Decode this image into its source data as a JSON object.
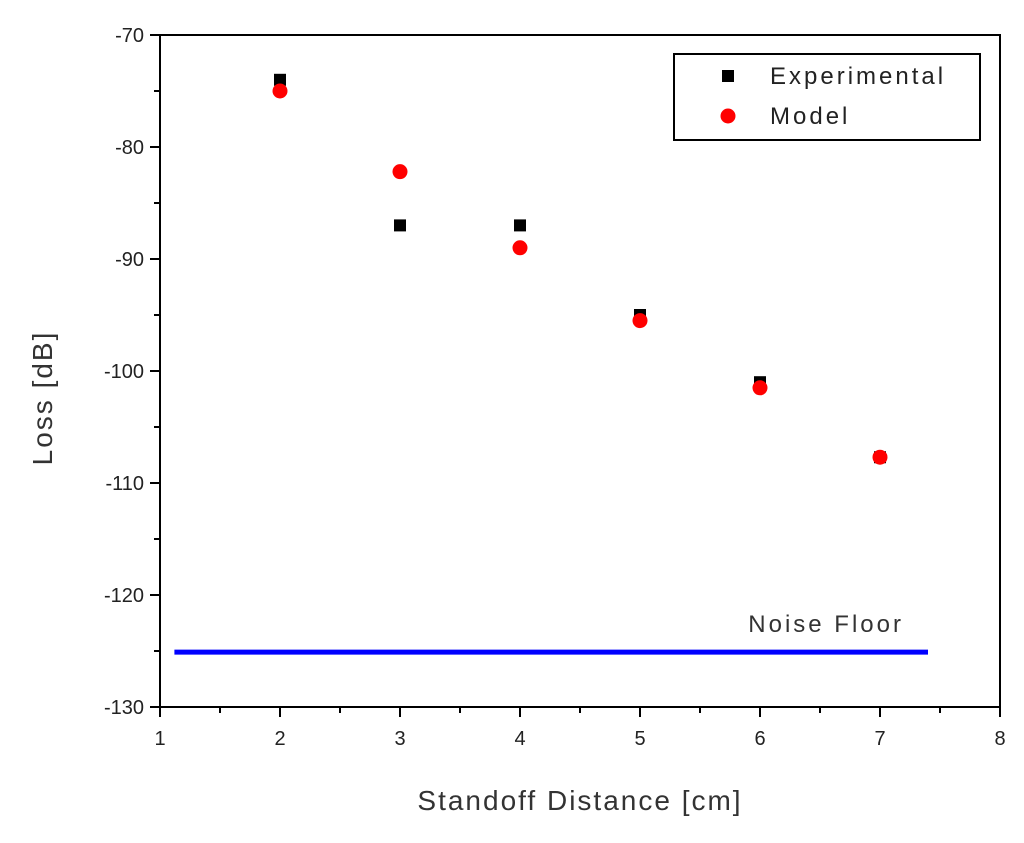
{
  "chart_data": {
    "type": "scatter",
    "xlabel": "Standoff Distance [cm]",
    "ylabel": "Loss [dB]",
    "xlim": [
      1,
      8
    ],
    "ylim": [
      -130,
      -70
    ],
    "xticks": [
      1,
      2,
      3,
      4,
      5,
      6,
      7,
      8
    ],
    "yticks": [
      -130,
      -120,
      -110,
      -100,
      -90,
      -80,
      -70
    ],
    "grid": false,
    "legend": {
      "placement": "top-right",
      "entries": [
        "Experimental",
        "Model"
      ]
    },
    "series": [
      {
        "name": "Experimental",
        "marker": "square",
        "color": "#000000",
        "x": [
          2,
          3,
          4,
          5,
          6,
          7
        ],
        "y": [
          -74,
          -87,
          -87,
          -95,
          -101,
          -107.7
        ]
      },
      {
        "name": "Model",
        "marker": "circle",
        "color": "#ff0000",
        "x": [
          2,
          3,
          4,
          5,
          6,
          7
        ],
        "y": [
          -75,
          -82.2,
          -89,
          -95.5,
          -101.5,
          -107.7
        ]
      }
    ],
    "annotations": [
      {
        "text": "Noise Floor",
        "type": "horizontal-line",
        "y": -125.1,
        "x_start": 1.12,
        "x_end": 7.4,
        "color": "#0000ff"
      }
    ]
  }
}
